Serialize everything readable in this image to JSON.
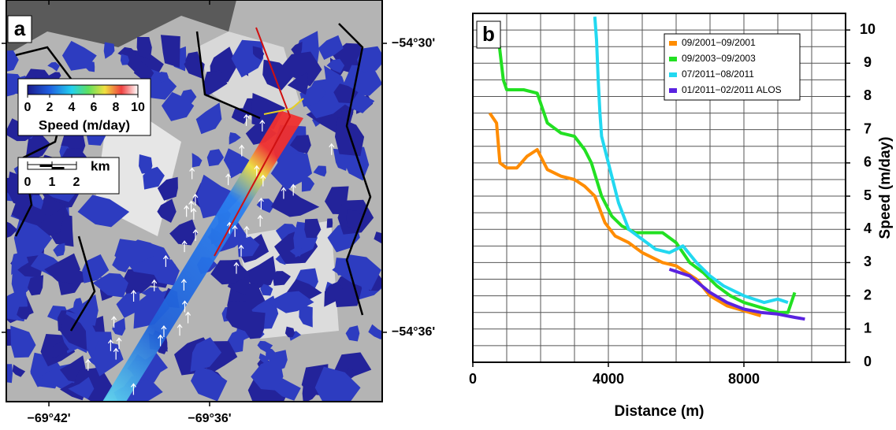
{
  "chart_data": [
    {
      "type": "map",
      "panel_label": "a",
      "colorbar": {
        "label": "Speed (m/day)",
        "lim": [
          0,
          10
        ],
        "ticks": [
          0,
          2,
          4,
          6,
          8,
          10
        ]
      },
      "scalebar": {
        "unit": "km",
        "ticks": [
          0,
          1,
          2
        ]
      },
      "xlim": [
        -69.7265,
        -69.4926
      ],
      "ylim": [
        -54.624,
        -54.485
      ],
      "xticks": [
        {
          "value": -69.7,
          "label": "−69°42'"
        },
        {
          "value": -69.6,
          "label": "−69°36'"
        }
      ],
      "yticks": [
        {
          "value": -54.5,
          "label": "−54°30'"
        },
        {
          "value": -54.6,
          "label": "−54°36'"
        }
      ]
    },
    {
      "type": "line",
      "panel_label": "b",
      "xlabel": "Distance (m)",
      "ylabel": "Speed (m/day)",
      "xlim": [
        0,
        11000
      ],
      "ylim": [
        0,
        10.5
      ],
      "xticks": [
        0,
        4000,
        8000
      ],
      "yticks": [
        0,
        1,
        2,
        3,
        4,
        5,
        6,
        7,
        8,
        9,
        10
      ],
      "xgrid": [
        1000,
        2000,
        3000,
        4000,
        5000,
        6000,
        7000,
        8000,
        9000,
        10000
      ],
      "ygrid": [
        0.5,
        1,
        1.5,
        2,
        2.5,
        3,
        3.5,
        4,
        4.5,
        5,
        5.5,
        6,
        6.5,
        7,
        7.5,
        8,
        8.5,
        9,
        9.5,
        10
      ],
      "legend": "upper right",
      "series": [
        {
          "name": "09/2001−09/2001",
          "color": "#ff8c00",
          "x": [
            500,
            700,
            800,
            1000,
            1300,
            1600,
            1900,
            2200,
            2600,
            3000,
            3300,
            3600,
            3900,
            4200,
            4600,
            5000,
            5600,
            6000,
            6600,
            7000,
            7500,
            8000,
            8500
          ],
          "values": [
            7.5,
            7.2,
            6.0,
            5.85,
            5.85,
            6.2,
            6.4,
            5.8,
            5.6,
            5.5,
            5.3,
            5.0,
            4.2,
            3.8,
            3.6,
            3.3,
            3.0,
            2.9,
            2.5,
            2.0,
            1.7,
            1.55,
            1.4
          ]
        },
        {
          "name": "09/2003−09/2003",
          "color": "#22e022",
          "x": [
            750,
            900,
            1000,
            1500,
            1900,
            2200,
            2600,
            3000,
            3300,
            3500,
            3800,
            4100,
            4400,
            4800,
            5200,
            5600,
            6000,
            6400,
            6800,
            7200,
            7600,
            8000,
            8500,
            9000,
            9300,
            9500
          ],
          "values": [
            9.8,
            8.5,
            8.2,
            8.2,
            8.1,
            7.2,
            6.9,
            6.8,
            6.4,
            6.0,
            5.0,
            4.4,
            4.1,
            3.9,
            3.9,
            3.9,
            3.6,
            3.0,
            2.7,
            2.3,
            2.0,
            1.8,
            1.65,
            1.5,
            1.5,
            2.1
          ]
        },
        {
          "name": "07/2011−08/2011",
          "color": "#22d8f0",
          "x": [
            3600,
            3650,
            3700,
            3750,
            3800,
            4000,
            4300,
            4600,
            5000,
            5400,
            5800,
            6200,
            6600,
            7000,
            7400,
            8000,
            8600,
            9000,
            9300
          ],
          "values": [
            10.4,
            9.7,
            8.5,
            7.5,
            6.8,
            6.0,
            4.8,
            4.0,
            3.7,
            3.4,
            3.3,
            3.5,
            3.0,
            2.6,
            2.3,
            2.0,
            1.8,
            1.9,
            1.8
          ]
        },
        {
          "name": "01/2011−02/2011 ALOS",
          "color": "#5a22e0",
          "x": [
            5800,
            6400,
            7000,
            7500,
            8000,
            8500,
            9000,
            9500,
            9800
          ],
          "values": [
            2.8,
            2.6,
            2.1,
            1.8,
            1.6,
            1.5,
            1.45,
            1.35,
            1.3
          ]
        }
      ]
    }
  ]
}
